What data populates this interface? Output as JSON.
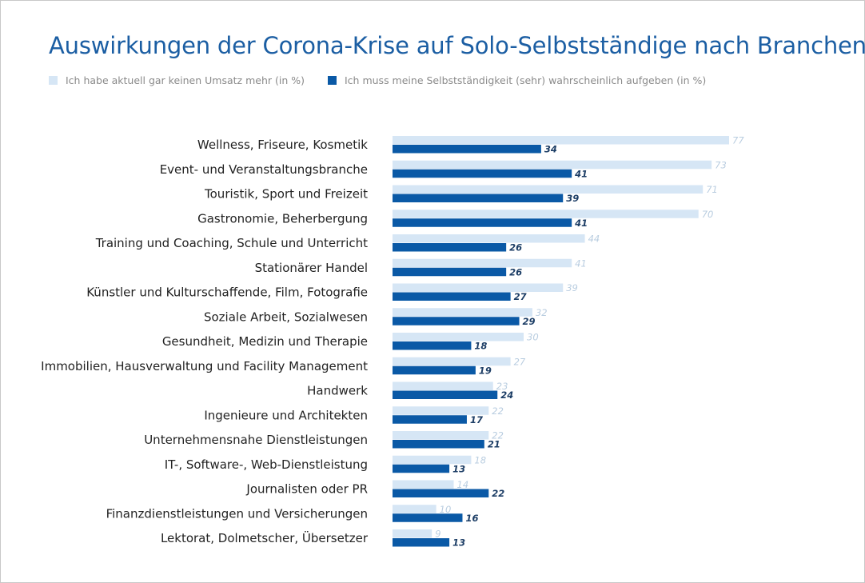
{
  "chart_data": {
    "type": "bar",
    "orientation": "horizontal",
    "title": "Auswirkungen der Corona-Krise auf Solo-Selbstständige nach Branchen",
    "legend_position": "top-left",
    "grid": false,
    "xlim": [
      0,
      77
    ],
    "categories": [
      "Wellness, Friseure, Kosmetik",
      "Event- und Veranstaltungsbranche",
      "Touristik, Sport und Freizeit",
      "Gastronomie, Beherbergung",
      "Training und Coaching, Schule und Unterricht",
      "Stationärer Handel",
      "Künstler und Kulturschaffende, Film, Fotografie",
      "Soziale Arbeit, Sozialwesen",
      "Gesundheit, Medizin und Therapie",
      "Immobilien, Hausverwaltung und Facility Management",
      "Handwerk",
      "Ingenieure und Architekten",
      "Unternehmensnahe Dienstleistungen",
      "IT-, Software-, Web-Dienstleistung",
      "Journalisten oder PR",
      "Finanzdienstleistungen und Versicherungen",
      "Lektorat, Dolmetscher, Übersetzer"
    ],
    "series": [
      {
        "name": "Ich habe aktuell gar keinen Umsatz mehr (in %)",
        "color": "#d6e6f5",
        "label_color": "#b9cde0",
        "values": [
          77,
          73,
          71,
          70,
          44,
          41,
          39,
          32,
          30,
          27,
          23,
          22,
          22,
          18,
          14,
          10,
          9
        ]
      },
      {
        "name": "Ich muss meine Selbstständigkeit (sehr) wahrscheinlich aufgeben (in %)",
        "color": "#0a59a6",
        "label_color": "#1d3e66",
        "values": [
          34,
          41,
          39,
          41,
          26,
          26,
          27,
          29,
          18,
          19,
          24,
          17,
          21,
          13,
          22,
          16,
          13
        ]
      }
    ]
  }
}
